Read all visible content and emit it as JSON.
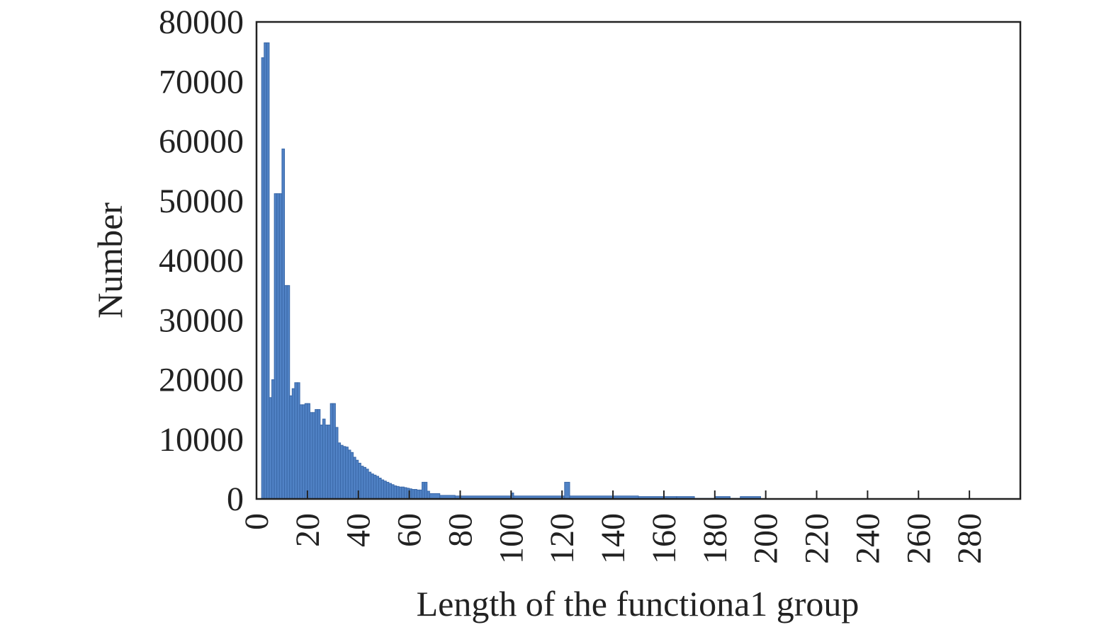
{
  "chart_data": {
    "type": "histogram",
    "xlabel": "Length of the functiona1 group",
    "ylabel": "Number",
    "color": "#5082c5",
    "bins": [
      2,
      3,
      4,
      5,
      6,
      7,
      8,
      9,
      10,
      11,
      12,
      13,
      14,
      15,
      16,
      17,
      18,
      19,
      20,
      21,
      22,
      23,
      24,
      25,
      26,
      27,
      28,
      29,
      30,
      31,
      32,
      33,
      34,
      35,
      36,
      37,
      38,
      39,
      40,
      41,
      42,
      43,
      44,
      45,
      46,
      47,
      48,
      49,
      50,
      51,
      52,
      53,
      54,
      55,
      56,
      57,
      58,
      59,
      60,
      61,
      62,
      63,
      64,
      65,
      66,
      67,
      68,
      72,
      78,
      100,
      101,
      121,
      123,
      150,
      165,
      172,
      180,
      186,
      190,
      198
    ],
    "values": [
      74000,
      76500,
      76500,
      17000,
      20000,
      51200,
      51200,
      51200,
      58700,
      35800,
      35800,
      17300,
      18500,
      19500,
      19500,
      15800,
      15800,
      16000,
      16000,
      14500,
      14500,
      15000,
      15000,
      12400,
      13400,
      12400,
      12400,
      16000,
      16000,
      12000,
      9400,
      9000,
      8800,
      8700,
      8200,
      7800,
      7000,
      6500,
      6000,
      5500,
      5300,
      5000,
      4500,
      4200,
      4000,
      3800,
      3500,
      3200,
      3000,
      2800,
      2600,
      2400,
      2200,
      2100,
      2000,
      2000,
      1900,
      1800,
      1700,
      1600,
      1600,
      1500,
      1500,
      2800,
      2800,
      1300,
      900,
      600,
      500,
      1000,
      500,
      2800,
      500,
      400,
      400,
      100,
      400,
      100,
      400
    ],
    "xlim": [
      0,
      300
    ],
    "xticks": [
      0,
      20,
      40,
      60,
      80,
      100,
      120,
      140,
      160,
      180,
      200,
      220,
      240,
      260,
      280
    ],
    "ylim": [
      0,
      80000
    ],
    "yticks": [
      0,
      10000,
      20000,
      30000,
      40000,
      50000,
      60000,
      70000,
      80000
    ]
  }
}
